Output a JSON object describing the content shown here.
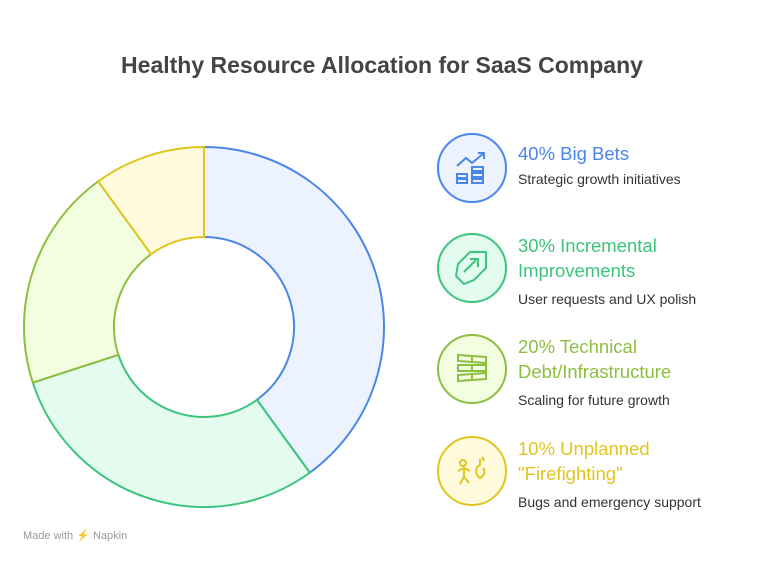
{
  "title": "Healthy Resource Allocation for SaaS Company",
  "chart_data": {
    "type": "pie",
    "donut": true,
    "categories": [
      "Big Bets",
      "Incremental Improvements",
      "Technical Debt/Infrastructure",
      "Unplanned \"Firefighting\""
    ],
    "values": [
      40,
      30,
      20,
      10
    ],
    "colors": [
      "#4a86e8",
      "#3cc47c",
      "#8cbf3f",
      "#e0c520"
    ],
    "fills": [
      "#ecf3fe",
      "#e3fcef",
      "#f3fde0",
      "#fffbdc"
    ]
  },
  "items": [
    {
      "heading_line1": "40% Big Bets",
      "heading_line2": "",
      "description": "Strategic growth initiatives",
      "icon": "growth-chart-coins-icon",
      "color": "#4a86e8"
    },
    {
      "heading_line1": "30% Incremental",
      "heading_line2": "Improvements",
      "description": "User requests and UX polish",
      "icon": "upgrade-arrow-icon",
      "color": "#3cc47c"
    },
    {
      "heading_line1": "20% Technical",
      "heading_line2": "Debt/Infrastructure",
      "description": "Scaling for future growth",
      "icon": "server-stack-icon",
      "color": "#8cbf3f"
    },
    {
      "heading_line1": "10% Unplanned",
      "heading_line2": "\"Firefighting\"",
      "description": "Bugs and emergency support",
      "icon": "running-person-fire-icon",
      "color": "#e0c520"
    }
  ],
  "footer": {
    "made_with": "Made with",
    "brand": "Napkin"
  }
}
